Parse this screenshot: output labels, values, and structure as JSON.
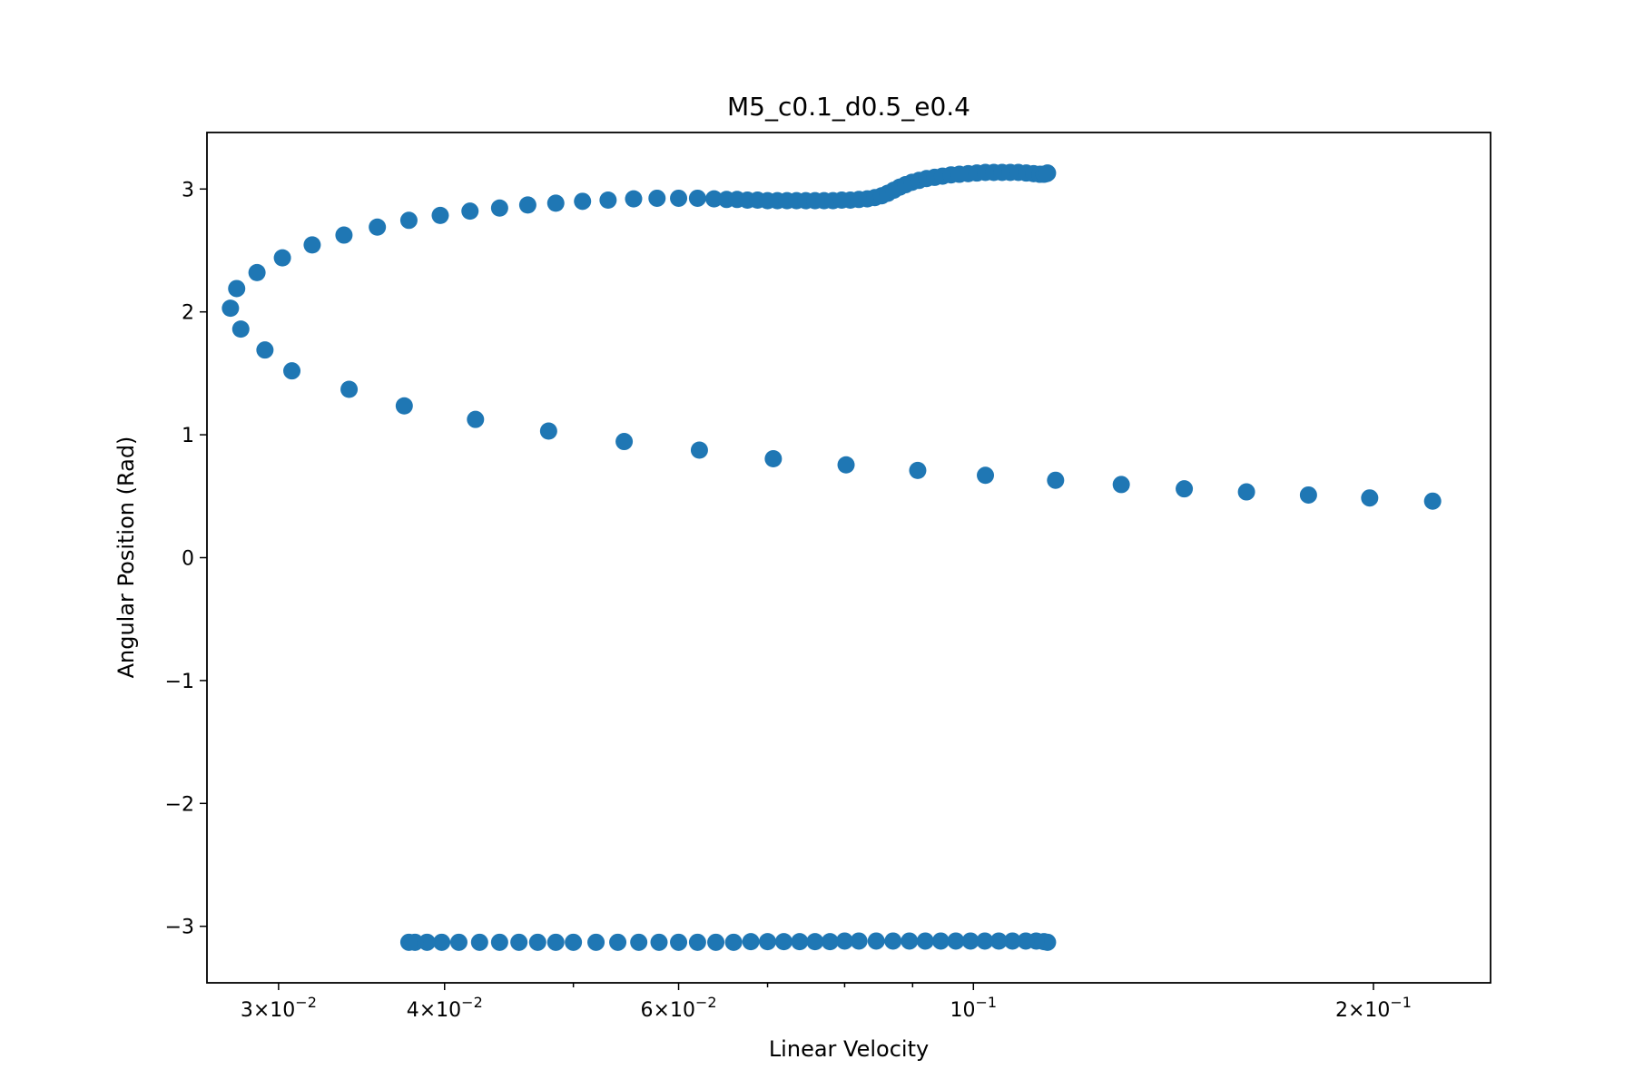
{
  "chart_data": {
    "type": "scatter",
    "title": "M5_c0.1_d0.5_e0.4",
    "xlabel": "Linear Velocity",
    "ylabel": "Angular Position (Rad)",
    "xscale": "log",
    "xlim": [
      0.0265,
      0.245
    ],
    "ylim": [
      -3.46,
      3.46
    ],
    "grid": false,
    "marker_color": "#1f77b4",
    "x_ticks": [
      {
        "value": 0.03,
        "mant": "3",
        "exp": "−2"
      },
      {
        "value": 0.04,
        "mant": "4",
        "exp": "−2"
      },
      {
        "value": 0.06,
        "mant": "6",
        "exp": "−2"
      },
      {
        "value": 0.1,
        "mant": "",
        "exp": "−1"
      },
      {
        "value": 0.2,
        "mant": "2",
        "exp": "−1"
      }
    ],
    "x_minor_ticks": [
      0.05,
      0.07,
      0.08,
      0.09
    ],
    "y_ticks": [
      {
        "value": 3,
        "label": "3"
      },
      {
        "value": 2,
        "label": "2"
      },
      {
        "value": 1,
        "label": "1"
      },
      {
        "value": 0,
        "label": "0"
      },
      {
        "value": -1,
        "label": "−1"
      },
      {
        "value": -2,
        "label": "−2"
      },
      {
        "value": -3,
        "label": "−3"
      }
    ],
    "points": [
      {
        "x": 0.2216,
        "y": 0.46
      },
      {
        "x": 0.1987,
        "y": 0.486
      },
      {
        "x": 0.1787,
        "y": 0.51
      },
      {
        "x": 0.1605,
        "y": 0.535
      },
      {
        "x": 0.1441,
        "y": 0.56
      },
      {
        "x": 0.1292,
        "y": 0.595
      },
      {
        "x": 0.1153,
        "y": 0.63
      },
      {
        "x": 0.1021,
        "y": 0.67
      },
      {
        "x": 0.0908,
        "y": 0.71
      },
      {
        "x": 0.0802,
        "y": 0.755
      },
      {
        "x": 0.0707,
        "y": 0.805
      },
      {
        "x": 0.0622,
        "y": 0.875
      },
      {
        "x": 0.0546,
        "y": 0.945
      },
      {
        "x": 0.0479,
        "y": 1.03
      },
      {
        "x": 0.0422,
        "y": 1.125
      },
      {
        "x": 0.0373,
        "y": 1.235
      },
      {
        "x": 0.0339,
        "y": 1.37
      },
      {
        "x": 0.0307,
        "y": 1.52
      },
      {
        "x": 0.0293,
        "y": 1.69
      },
      {
        "x": 0.0281,
        "y": 1.86
      },
      {
        "x": 0.0276,
        "y": 2.03
      },
      {
        "x": 0.0279,
        "y": 2.19
      },
      {
        "x": 0.0289,
        "y": 2.32
      },
      {
        "x": 0.0302,
        "y": 2.44
      },
      {
        "x": 0.0318,
        "y": 2.545
      },
      {
        "x": 0.0336,
        "y": 2.625
      },
      {
        "x": 0.0356,
        "y": 2.69
      },
      {
        "x": 0.0376,
        "y": 2.745
      },
      {
        "x": 0.0397,
        "y": 2.785
      },
      {
        "x": 0.0418,
        "y": 2.82
      },
      {
        "x": 0.044,
        "y": 2.845
      },
      {
        "x": 0.0462,
        "y": 2.87
      },
      {
        "x": 0.0485,
        "y": 2.885
      },
      {
        "x": 0.0508,
        "y": 2.9
      },
      {
        "x": 0.0531,
        "y": 2.91
      },
      {
        "x": 0.0555,
        "y": 2.92
      },
      {
        "x": 0.0578,
        "y": 2.925
      },
      {
        "x": 0.06,
        "y": 2.925
      },
      {
        "x": 0.062,
        "y": 2.925
      },
      {
        "x": 0.0638,
        "y": 2.92
      },
      {
        "x": 0.0652,
        "y": 2.915
      },
      {
        "x": 0.0664,
        "y": 2.915
      },
      {
        "x": 0.0676,
        "y": 2.91
      },
      {
        "x": 0.0688,
        "y": 2.91
      },
      {
        "x": 0.07,
        "y": 2.905
      },
      {
        "x": 0.0712,
        "y": 2.905
      },
      {
        "x": 0.0724,
        "y": 2.905
      },
      {
        "x": 0.0736,
        "y": 2.905
      },
      {
        "x": 0.0748,
        "y": 2.905
      },
      {
        "x": 0.076,
        "y": 2.905
      },
      {
        "x": 0.0772,
        "y": 2.905
      },
      {
        "x": 0.0784,
        "y": 2.905
      },
      {
        "x": 0.0796,
        "y": 2.91
      },
      {
        "x": 0.0808,
        "y": 2.91
      },
      {
        "x": 0.082,
        "y": 2.915
      },
      {
        "x": 0.0832,
        "y": 2.92
      },
      {
        "x": 0.0843,
        "y": 2.93
      },
      {
        "x": 0.0853,
        "y": 2.945
      },
      {
        "x": 0.0862,
        "y": 2.965
      },
      {
        "x": 0.0871,
        "y": 2.99
      },
      {
        "x": 0.088,
        "y": 3.015
      },
      {
        "x": 0.0889,
        "y": 3.035
      },
      {
        "x": 0.0899,
        "y": 3.055
      },
      {
        "x": 0.091,
        "y": 3.07
      },
      {
        "x": 0.0922,
        "y": 3.085
      },
      {
        "x": 0.0935,
        "y": 3.095
      },
      {
        "x": 0.0948,
        "y": 3.105
      },
      {
        "x": 0.0962,
        "y": 3.115
      },
      {
        "x": 0.0976,
        "y": 3.12
      },
      {
        "x": 0.0991,
        "y": 3.125
      },
      {
        "x": 0.1006,
        "y": 3.13
      },
      {
        "x": 0.1021,
        "y": 3.135
      },
      {
        "x": 0.1036,
        "y": 3.135
      },
      {
        "x": 0.1051,
        "y": 3.135
      },
      {
        "x": 0.1066,
        "y": 3.135
      },
      {
        "x": 0.1081,
        "y": 3.135
      },
      {
        "x": 0.1096,
        "y": 3.13
      },
      {
        "x": 0.111,
        "y": 3.125
      },
      {
        "x": 0.1122,
        "y": 3.12
      },
      {
        "x": 0.113,
        "y": 3.12
      },
      {
        "x": 0.1135,
        "y": 3.125
      },
      {
        "x": 0.1137,
        "y": 3.13
      },
      {
        "x": 0.1137,
        "y": -3.13
      },
      {
        "x": 0.113,
        "y": -3.125
      },
      {
        "x": 0.1115,
        "y": -3.12
      },
      {
        "x": 0.1095,
        "y": -3.12
      },
      {
        "x": 0.107,
        "y": -3.12
      },
      {
        "x": 0.1045,
        "y": -3.12
      },
      {
        "x": 0.102,
        "y": -3.12
      },
      {
        "x": 0.0995,
        "y": -3.12
      },
      {
        "x": 0.097,
        "y": -3.12
      },
      {
        "x": 0.0945,
        "y": -3.12
      },
      {
        "x": 0.092,
        "y": -3.12
      },
      {
        "x": 0.0895,
        "y": -3.12
      },
      {
        "x": 0.087,
        "y": -3.12
      },
      {
        "x": 0.0845,
        "y": -3.12
      },
      {
        "x": 0.082,
        "y": -3.12
      },
      {
        "x": 0.08,
        "y": -3.12
      },
      {
        "x": 0.078,
        "y": -3.125
      },
      {
        "x": 0.076,
        "y": -3.125
      },
      {
        "x": 0.074,
        "y": -3.125
      },
      {
        "x": 0.072,
        "y": -3.125
      },
      {
        "x": 0.07,
        "y": -3.125
      },
      {
        "x": 0.068,
        "y": -3.125
      },
      {
        "x": 0.066,
        "y": -3.13
      },
      {
        "x": 0.064,
        "y": -3.13
      },
      {
        "x": 0.062,
        "y": -3.13
      },
      {
        "x": 0.06,
        "y": -3.13
      },
      {
        "x": 0.058,
        "y": -3.13
      },
      {
        "x": 0.056,
        "y": -3.13
      },
      {
        "x": 0.054,
        "y": -3.13
      },
      {
        "x": 0.052,
        "y": -3.13
      },
      {
        "x": 0.05,
        "y": -3.13
      },
      {
        "x": 0.0485,
        "y": -3.13
      },
      {
        "x": 0.047,
        "y": -3.13
      },
      {
        "x": 0.0455,
        "y": -3.13
      },
      {
        "x": 0.044,
        "y": -3.13
      },
      {
        "x": 0.0425,
        "y": -3.13
      },
      {
        "x": 0.041,
        "y": -3.13
      },
      {
        "x": 0.0398,
        "y": -3.13
      },
      {
        "x": 0.0388,
        "y": -3.13
      },
      {
        "x": 0.038,
        "y": -3.13
      },
      {
        "x": 0.0376,
        "y": -3.13
      }
    ]
  }
}
